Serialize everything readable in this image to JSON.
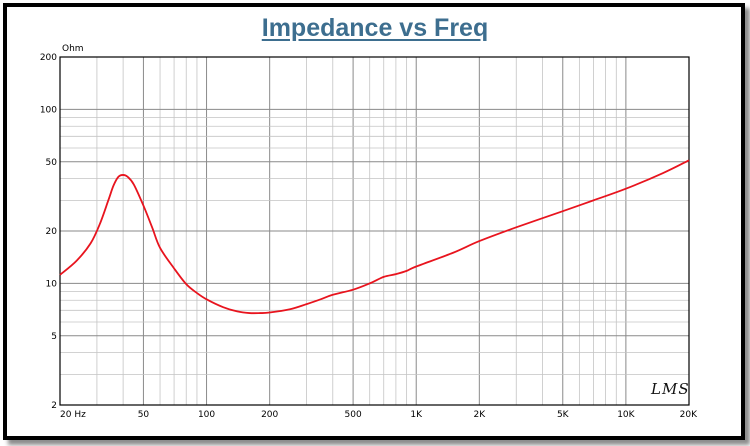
{
  "chart_data": {
    "type": "line",
    "title": "Impedance vs Freq",
    "ylabel": "Ohm",
    "xlabel": "",
    "x_scale": "log",
    "y_scale": "log",
    "xlim": [
      20,
      20000
    ],
    "ylim": [
      2,
      200
    ],
    "grid": true,
    "x_ticks": [
      {
        "value": 20,
        "label": "20 Hz"
      },
      {
        "value": 50,
        "label": "50"
      },
      {
        "value": 100,
        "label": "100"
      },
      {
        "value": 200,
        "label": "200"
      },
      {
        "value": 500,
        "label": "500"
      },
      {
        "value": 1000,
        "label": "1K"
      },
      {
        "value": 2000,
        "label": "2K"
      },
      {
        "value": 5000,
        "label": "5K"
      },
      {
        "value": 10000,
        "label": "10K"
      },
      {
        "value": 20000,
        "label": "20K"
      }
    ],
    "y_ticks": [
      {
        "value": 200,
        "label": "200"
      },
      {
        "value": 100,
        "label": "100"
      },
      {
        "value": 50,
        "label": "50"
      },
      {
        "value": 20,
        "label": "20"
      },
      {
        "value": 10,
        "label": "10"
      },
      {
        "value": 5,
        "label": "5"
      },
      {
        "value": 2,
        "label": "2"
      }
    ],
    "series": [
      {
        "color": "#e8141e",
        "points": [
          [
            20,
            11.2
          ],
          [
            24,
            13.5
          ],
          [
            28,
            17
          ],
          [
            31,
            22
          ],
          [
            34,
            30
          ],
          [
            36,
            36.5
          ],
          [
            38,
            41
          ],
          [
            40,
            42
          ],
          [
            42,
            41
          ],
          [
            45,
            37
          ],
          [
            50,
            28
          ],
          [
            55,
            21
          ],
          [
            60,
            16
          ],
          [
            70,
            12.2
          ],
          [
            80,
            9.9
          ],
          [
            90,
            8.8
          ],
          [
            100,
            8.1
          ],
          [
            120,
            7.3
          ],
          [
            140,
            6.9
          ],
          [
            160,
            6.75
          ],
          [
            180,
            6.75
          ],
          [
            200,
            6.8
          ],
          [
            250,
            7.1
          ],
          [
            300,
            7.6
          ],
          [
            350,
            8.1
          ],
          [
            400,
            8.6
          ],
          [
            500,
            9.2
          ],
          [
            600,
            10.0
          ],
          [
            700,
            10.9
          ],
          [
            800,
            11.3
          ],
          [
            900,
            11.8
          ],
          [
            1000,
            12.5
          ],
          [
            1500,
            15.0
          ],
          [
            2000,
            17.5
          ],
          [
            3000,
            21.0
          ],
          [
            5000,
            26.0
          ],
          [
            7000,
            30.0
          ],
          [
            10000,
            35.0
          ],
          [
            15000,
            43.0
          ],
          [
            20000,
            51.0
          ]
        ]
      }
    ]
  },
  "watermark": "LMS"
}
